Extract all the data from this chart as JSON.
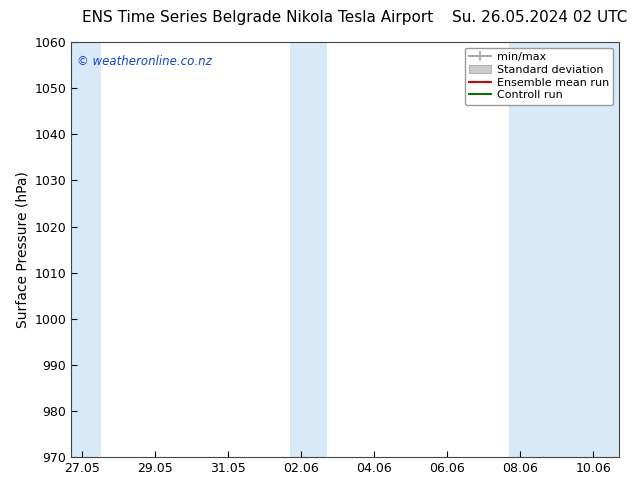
{
  "title_left": "ENS Time Series Belgrade Nikola Tesla Airport",
  "title_right": "Su. 26.05.2024 02 UTC",
  "ylabel": "Surface Pressure (hPa)",
  "ylim": [
    970,
    1060
  ],
  "yticks": [
    970,
    980,
    990,
    1000,
    1010,
    1020,
    1030,
    1040,
    1050,
    1060
  ],
  "x_labels": [
    "27.05",
    "29.05",
    "31.05",
    "02.06",
    "04.06",
    "06.06",
    "08.06",
    "10.06"
  ],
  "x_values": [
    0,
    2,
    4,
    6,
    8,
    10,
    12,
    14
  ],
  "xlim": [
    -0.3,
    14.7
  ],
  "shaded_bands": [
    {
      "xmin": -0.3,
      "xmax": 0.5
    },
    {
      "xmin": 5.7,
      "xmax": 6.7
    },
    {
      "xmin": 11.7,
      "xmax": 14.7
    }
  ],
  "shaded_color": "#d8eaf8",
  "background_color": "#ffffff",
  "plot_bg_color": "#ffffff",
  "watermark": "© weatheronline.co.nz",
  "watermark_color": "#1144cc",
  "legend_items": [
    {
      "label": "min/max",
      "color": "#aaaaaa"
    },
    {
      "label": "Standard deviation",
      "color": "#cccccc"
    },
    {
      "label": "Ensemble mean run",
      "color": "#dd0000"
    },
    {
      "label": "Controll run",
      "color": "#007700"
    }
  ],
  "title_fontsize": 11,
  "tick_fontsize": 9,
  "ylabel_fontsize": 10,
  "legend_fontsize": 8
}
